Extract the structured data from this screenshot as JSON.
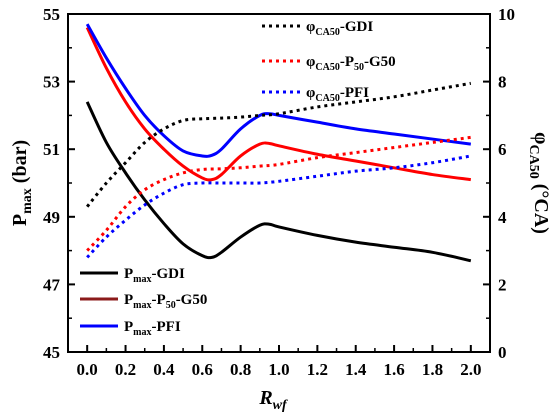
{
  "chart_data": {
    "type": "line",
    "xlabel": "R",
    "xlabel_sub": "wf",
    "x_ticks": [
      "0.0",
      "0.2",
      "0.4",
      "0.6",
      "0.8",
      "1.0",
      "1.2",
      "1.4",
      "1.6",
      "1.8",
      "2.0"
    ],
    "x_tick_values": [
      0.0,
      0.2,
      0.4,
      0.6,
      0.8,
      1.0,
      1.2,
      1.4,
      1.6,
      1.8,
      2.0
    ],
    "xlim": [
      -0.1,
      2.1
    ],
    "y_left": {
      "label": "P",
      "label_sub": "max",
      "label_unit": " (bar)",
      "ticks": [
        "45",
        "47",
        "49",
        "51",
        "53",
        "55"
      ],
      "tick_values": [
        45,
        47,
        49,
        51,
        53,
        55
      ],
      "ylim": [
        45,
        55
      ]
    },
    "y_right": {
      "label": "φ",
      "label_sub": "CA50",
      "label_unit": " (°CA)",
      "ticks": [
        "0",
        "2",
        "4",
        "6",
        "8",
        "10"
      ],
      "tick_values": [
        0,
        2,
        4,
        6,
        8,
        10
      ],
      "ylim": [
        0,
        10
      ]
    },
    "grid": false,
    "legend_positions": [
      "top-right",
      "bottom-left"
    ],
    "series": [
      {
        "key": "pmax_gdi",
        "name_main": "P",
        "name_sub": "max",
        "name_rest": "-GDI",
        "name_sub2": "",
        "name_rest2": "",
        "axis": "left",
        "style": "solid",
        "color": "#000000",
        "x": [
          0.0,
          0.1,
          0.2,
          0.3,
          0.4,
          0.5,
          0.6,
          0.65,
          0.7,
          0.8,
          0.9,
          0.95,
          1.0,
          1.2,
          1.4,
          1.6,
          1.8,
          2.0
        ],
        "y": [
          52.4,
          51.2,
          50.3,
          49.5,
          48.8,
          48.2,
          47.85,
          47.8,
          47.95,
          48.4,
          48.75,
          48.78,
          48.7,
          48.45,
          48.25,
          48.1,
          47.95,
          47.7
        ]
      },
      {
        "key": "pmax_p50g50",
        "name_main": "P",
        "name_sub": "max",
        "name_rest": "-P",
        "name_sub2": "50",
        "name_rest2": "-G50",
        "axis": "left",
        "style": "solid",
        "color": "#ff0000",
        "x": [
          0.0,
          0.1,
          0.2,
          0.3,
          0.4,
          0.5,
          0.6,
          0.65,
          0.7,
          0.8,
          0.9,
          0.95,
          1.0,
          1.2,
          1.4,
          1.6,
          1.8,
          2.0
        ],
        "y": [
          54.6,
          53.4,
          52.4,
          51.6,
          51.0,
          50.5,
          50.15,
          50.1,
          50.25,
          50.8,
          51.15,
          51.17,
          51.1,
          50.85,
          50.65,
          50.45,
          50.25,
          50.1
        ]
      },
      {
        "key": "pmax_pfi",
        "name_main": "P",
        "name_sub": "max",
        "name_rest": "-PFI",
        "name_sub2": "",
        "name_rest2": "",
        "axis": "left",
        "style": "solid",
        "color": "#0000ff",
        "x": [
          0.0,
          0.1,
          0.2,
          0.3,
          0.4,
          0.5,
          0.6,
          0.65,
          0.7,
          0.8,
          0.9,
          0.95,
          1.0,
          1.2,
          1.4,
          1.6,
          1.8,
          2.0
        ],
        "y": [
          54.7,
          53.7,
          52.8,
          52.0,
          51.4,
          50.95,
          50.8,
          50.82,
          51.0,
          51.6,
          52.0,
          52.05,
          52.0,
          51.8,
          51.6,
          51.45,
          51.3,
          51.15
        ]
      },
      {
        "key": "phi_gdi",
        "name_main": "φ",
        "name_sub": "CA50",
        "name_rest": "-GDI",
        "name_sub2": "",
        "name_rest2": "",
        "axis": "right",
        "style": "dotted",
        "color": "#000000",
        "x": [
          0.0,
          0.1,
          0.2,
          0.3,
          0.4,
          0.5,
          0.6,
          0.7,
          0.8,
          0.9,
          1.0,
          1.2,
          1.4,
          1.6,
          1.8,
          2.0
        ],
        "y": [
          4.3,
          5.0,
          5.6,
          6.2,
          6.6,
          6.85,
          6.9,
          6.92,
          6.95,
          7.0,
          7.05,
          7.25,
          7.4,
          7.55,
          7.75,
          7.95
        ]
      },
      {
        "key": "phi_p50g50",
        "name_main": "φ",
        "name_sub": "CA50",
        "name_rest": "-P",
        "name_sub2": "50",
        "name_rest2": "-G50",
        "axis": "right",
        "style": "dotted",
        "color": "#ff0000",
        "x": [
          0.0,
          0.1,
          0.2,
          0.3,
          0.4,
          0.5,
          0.6,
          0.7,
          0.8,
          0.9,
          1.0,
          1.2,
          1.4,
          1.6,
          1.8,
          2.0
        ],
        "y": [
          3.0,
          3.6,
          4.3,
          4.8,
          5.1,
          5.3,
          5.4,
          5.42,
          5.45,
          5.5,
          5.55,
          5.75,
          5.9,
          6.05,
          6.2,
          6.35
        ]
      },
      {
        "key": "phi_pfi",
        "name_main": "φ",
        "name_sub": "CA50",
        "name_rest": "-PFI",
        "name_sub2": "",
        "name_rest2": "",
        "axis": "right",
        "style": "dotted",
        "color": "#0000ff",
        "x": [
          0.0,
          0.1,
          0.2,
          0.3,
          0.4,
          0.5,
          0.6,
          0.7,
          0.8,
          0.9,
          1.0,
          1.2,
          1.4,
          1.6,
          1.8,
          2.0
        ],
        "y": [
          2.8,
          3.4,
          3.9,
          4.35,
          4.7,
          4.95,
          5.0,
          5.0,
          5.0,
          5.0,
          5.05,
          5.2,
          5.35,
          5.45,
          5.6,
          5.8
        ]
      }
    ]
  }
}
